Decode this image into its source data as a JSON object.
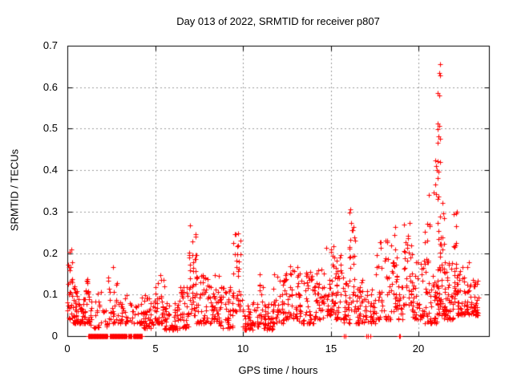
{
  "chart_data": {
    "type": "scatter",
    "title": "Day 013 of 2022, SRMTID for receiver p807",
    "xlabel": "GPS time / hours",
    "ylabel": "SRMTID / TECUs",
    "xlim": [
      0,
      24
    ],
    "ylim": [
      0,
      0.7
    ],
    "xticks": [
      0,
      5,
      10,
      15,
      20
    ],
    "xtick_labels": [
      "0",
      "5",
      "10",
      "15",
      "20"
    ],
    "yticks": [
      0,
      0.1,
      0.2,
      0.3,
      0.4,
      0.5,
      0.6,
      0.7
    ],
    "ytick_labels": [
      "0",
      "0.1",
      "0.2",
      "0.3",
      "0.4",
      "0.5",
      "0.6",
      "0.7"
    ],
    "grid": true,
    "legend": "none",
    "marker": {
      "symbol": "plus",
      "color": "#ff0000",
      "size": 7
    },
    "grid_color": "#9b9b9b",
    "border_color": "#000000",
    "background_color": "#ffffff",
    "seed": 20220113,
    "zero_bands": [
      [
        1.19,
        2.29
      ],
      [
        2.42,
        3.38
      ],
      [
        3.47,
        3.52
      ],
      [
        3.56,
        3.66
      ],
      [
        3.75,
        4.25
      ]
    ],
    "zero_points": [
      15.75,
      15.82,
      17.02,
      17.1,
      17.25,
      18.88,
      18.95
    ],
    "clusters": [
      [
        0.0,
        0.3,
        0.04,
        0.23,
        28
      ],
      [
        0.3,
        1.0,
        0.03,
        0.12,
        60
      ],
      [
        1.0,
        1.3,
        0.03,
        0.14,
        25
      ],
      [
        1.3,
        2.3,
        0.02,
        0.11,
        32
      ],
      [
        2.3,
        2.9,
        0.03,
        0.19,
        30
      ],
      [
        2.9,
        3.5,
        0.03,
        0.1,
        24
      ],
      [
        3.5,
        4.3,
        0.03,
        0.1,
        28
      ],
      [
        4.3,
        5.0,
        0.02,
        0.1,
        48
      ],
      [
        5.0,
        5.5,
        0.03,
        0.15,
        34
      ],
      [
        5.5,
        6.3,
        0.015,
        0.08,
        46
      ],
      [
        6.3,
        6.9,
        0.02,
        0.12,
        40
      ],
      [
        6.9,
        7.35,
        0.05,
        0.27,
        38
      ],
      [
        7.35,
        8.0,
        0.03,
        0.15,
        45
      ],
      [
        8.0,
        8.7,
        0.03,
        0.15,
        45
      ],
      [
        8.7,
        9.4,
        0.02,
        0.12,
        40
      ],
      [
        9.4,
        10.0,
        0.06,
        0.25,
        38
      ],
      [
        10.0,
        10.9,
        0.015,
        0.09,
        50
      ],
      [
        10.9,
        11.15,
        0.03,
        0.15,
        16
      ],
      [
        11.15,
        11.7,
        0.015,
        0.08,
        35
      ],
      [
        11.7,
        12.4,
        0.03,
        0.15,
        45
      ],
      [
        12.4,
        13.15,
        0.04,
        0.17,
        45
      ],
      [
        13.15,
        14.0,
        0.03,
        0.16,
        55
      ],
      [
        14.0,
        14.7,
        0.04,
        0.17,
        45
      ],
      [
        14.7,
        15.25,
        0.05,
        0.22,
        42
      ],
      [
        15.25,
        15.7,
        0.04,
        0.2,
        34
      ],
      [
        15.7,
        16.05,
        0.03,
        0.13,
        25
      ],
      [
        16.05,
        16.4,
        0.06,
        0.31,
        30
      ],
      [
        16.4,
        17.0,
        0.03,
        0.15,
        40
      ],
      [
        17.0,
        17.55,
        0.03,
        0.12,
        26
      ],
      [
        17.55,
        18.4,
        0.04,
        0.24,
        46
      ],
      [
        18.4,
        18.75,
        0.06,
        0.31,
        28
      ],
      [
        18.75,
        19.1,
        0.04,
        0.15,
        20
      ],
      [
        19.1,
        19.6,
        0.07,
        0.28,
        34
      ],
      [
        19.6,
        20.3,
        0.04,
        0.2,
        45
      ],
      [
        20.3,
        20.65,
        0.03,
        0.34,
        30
      ],
      [
        20.65,
        21.05,
        0.03,
        0.15,
        30
      ],
      [
        21.05,
        21.45,
        0.05,
        0.34,
        55
      ],
      [
        21.45,
        22.0,
        0.04,
        0.2,
        50
      ],
      [
        22.0,
        22.2,
        0.08,
        0.32,
        24
      ],
      [
        22.2,
        23.0,
        0.05,
        0.18,
        60
      ],
      [
        23.0,
        23.4,
        0.05,
        0.14,
        35
      ]
    ],
    "peak_points": [
      [
        21.2,
        0.655
      ],
      [
        21.15,
        0.635
      ],
      [
        21.2,
        0.628
      ],
      [
        21.1,
        0.585
      ],
      [
        21.16,
        0.58
      ],
      [
        21.1,
        0.512
      ],
      [
        21.15,
        0.506
      ],
      [
        21.06,
        0.498
      ],
      [
        21.12,
        0.482
      ],
      [
        21.2,
        0.476
      ],
      [
        21.1,
        0.466
      ],
      [
        20.95,
        0.424
      ],
      [
        21.1,
        0.421
      ],
      [
        21.2,
        0.42
      ],
      [
        21.0,
        0.41
      ],
      [
        21.02,
        0.4
      ],
      [
        21.12,
        0.396
      ],
      [
        21.06,
        0.381
      ],
      [
        20.96,
        0.366
      ],
      [
        20.86,
        0.346
      ],
      [
        21.0,
        0.342
      ],
      [
        20.56,
        0.34
      ]
    ]
  }
}
